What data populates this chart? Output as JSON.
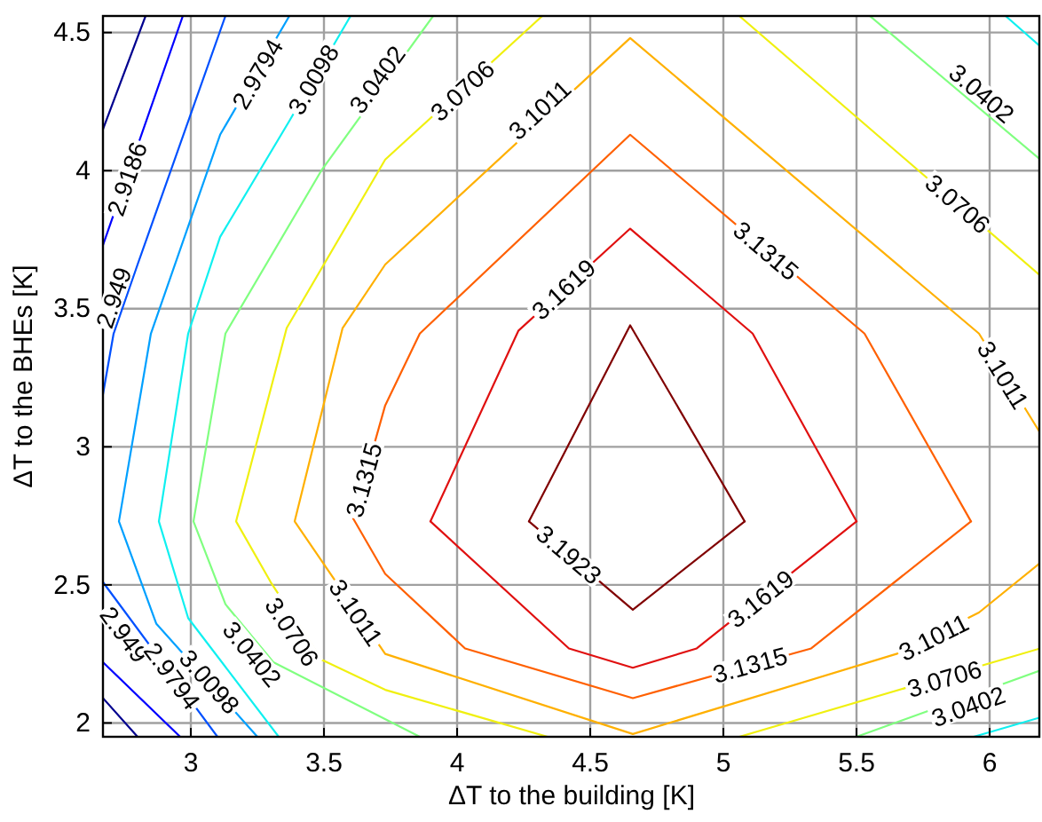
{
  "chart_data": {
    "type": "line",
    "xlabel": "ΔT to the building [K]",
    "ylabel": "ΔT to the BHEs [K]",
    "xlim": [
      2.67,
      6.19
    ],
    "ylim": [
      1.95,
      4.56
    ],
    "xticks": [
      3,
      3.5,
      4,
      4.5,
      5,
      5.5,
      6
    ],
    "yticks": [
      2,
      2.5,
      3,
      3.5,
      4,
      4.5
    ],
    "grid": true,
    "series": [
      {
        "color": "#00008f",
        "x": [
          2.67,
          2.83
        ],
        "values": [
          4.15,
          4.56
        ]
      },
      {
        "color": "#00008f",
        "x": [
          2.67,
          2.8
        ],
        "values": [
          2.09,
          1.95
        ]
      },
      {
        "color": "#0000ff",
        "x": [
          2.97,
          2.67
        ],
        "values": [
          4.56,
          3.73
        ]
      },
      {
        "color": "#0000ff",
        "x": [
          2.67,
          2.96
        ],
        "values": [
          2.22,
          1.95
        ]
      },
      {
        "color": "#0050ff",
        "x": [
          3.13,
          2.8,
          2.71,
          2.67
        ],
        "values": [
          4.56,
          3.66,
          3.41,
          3.19
        ]
      },
      {
        "color": "#0050ff",
        "x": [
          2.67,
          3.1
        ],
        "values": [
          2.51,
          1.95
        ]
      },
      {
        "color": "#00a0ff",
        "x": [
          3.37,
          3.11,
          2.85,
          2.73,
          2.87,
          3.25
        ],
        "values": [
          4.56,
          4.13,
          3.41,
          2.73,
          2.36,
          1.95
        ]
      },
      {
        "color": "#10f0f0",
        "x": [
          3.6,
          3.37,
          3.11,
          2.99,
          2.88,
          2.99,
          3.33
        ],
        "values": [
          4.56,
          4.18,
          3.76,
          3.41,
          2.73,
          2.38,
          1.95
        ]
      },
      {
        "color": "#10f0f0",
        "x": [
          6.06,
          6.19
        ],
        "values": [
          4.56,
          4.45
        ]
      },
      {
        "color": "#10f0f0",
        "x": [
          5.94,
          6.19
        ],
        "values": [
          1.95,
          2.02
        ]
      },
      {
        "color": "#80ff80",
        "x": [
          3.91,
          3.49,
          3.13,
          3.01,
          3.13,
          3.31,
          3.86
        ],
        "values": [
          4.56,
          4.0,
          3.41,
          2.73,
          2.43,
          2.22,
          1.95
        ]
      },
      {
        "color": "#80ff80",
        "x": [
          5.55,
          6.19
        ],
        "values": [
          4.56,
          4.04
        ]
      },
      {
        "color": "#80ff80",
        "x": [
          6.19,
          5.5
        ],
        "values": [
          2.19,
          1.95
        ]
      },
      {
        "color": "#f0f010",
        "x": [
          4.32,
          3.73,
          3.36,
          3.17,
          3.3,
          3.49,
          3.73,
          4.34
        ],
        "values": [
          4.56,
          4.04,
          3.43,
          2.73,
          2.51,
          2.23,
          2.12,
          1.95
        ]
      },
      {
        "color": "#f0f010",
        "x": [
          5.06,
          6.19
        ],
        "values": [
          4.56,
          3.62
        ]
      },
      {
        "color": "#f0f010",
        "x": [
          6.19,
          5.06
        ],
        "values": [
          2.27,
          1.95
        ]
      },
      {
        "color": "#ffb000",
        "x": [
          6.19,
          5.96,
          4.65,
          3.73,
          3.57,
          3.39,
          3.73,
          4.66,
          5.65,
          5.96,
          6.19
        ],
        "values": [
          3.05,
          3.41,
          4.48,
          3.66,
          3.43,
          2.73,
          2.25,
          1.96,
          2.25,
          2.4,
          2.58
        ]
      },
      {
        "color": "#ff6000",
        "x": [
          3.61,
          3.73,
          3.86,
          4.65,
          5.53,
          5.93
        ],
        "values": [
          2.74,
          3.15,
          3.41,
          4.13,
          3.41,
          2.73
        ]
      },
      {
        "color": "#ff6000",
        "x": [
          3.61,
          3.73,
          4.03,
          4.66,
          5.33,
          5.93
        ],
        "values": [
          2.74,
          2.54,
          2.27,
          2.09,
          2.27,
          2.73
        ]
      },
      {
        "color": "#e01010",
        "x": [
          3.9,
          4.23,
          4.65,
          5.11,
          5.5
        ],
        "values": [
          2.73,
          3.42,
          3.79,
          3.41,
          2.73
        ]
      },
      {
        "color": "#e01010",
        "x": [
          3.9,
          4.42,
          4.66,
          4.9,
          5.5
        ],
        "values": [
          2.73,
          2.27,
          2.2,
          2.27,
          2.73
        ]
      },
      {
        "color": "#800000",
        "x": [
          4.27,
          4.65,
          5.08
        ],
        "values": [
          2.73,
          3.44,
          2.73
        ]
      },
      {
        "color": "#800000",
        "x": [
          4.27,
          4.66,
          5.08
        ],
        "values": [
          2.73,
          2.41,
          2.73
        ]
      }
    ],
    "annotations": [
      {
        "text": "2.9186",
        "x": 2.76,
        "y": 3.97
      },
      {
        "text": "2.949",
        "x": 2.71,
        "y": 3.54
      },
      {
        "text": "2.949",
        "x": 2.75,
        "y": 2.32
      },
      {
        "text": "2.9794",
        "x": 3.25,
        "y": 4.35
      },
      {
        "text": "2.9794",
        "x": 2.93,
        "y": 2.17
      },
      {
        "text": "3.0098",
        "x": 3.46,
        "y": 4.33
      },
      {
        "text": "3.0098",
        "x": 3.07,
        "y": 2.15
      },
      {
        "text": "3.0402",
        "x": 3.7,
        "y": 4.33
      },
      {
        "text": "3.0402",
        "x": 3.23,
        "y": 2.25
      },
      {
        "text": "3.0402",
        "x": 5.97,
        "y": 4.28
      },
      {
        "text": "3.0402",
        "x": 5.92,
        "y": 2.06
      },
      {
        "text": "3.0706",
        "x": 4.02,
        "y": 4.29
      },
      {
        "text": "3.0706",
        "x": 3.38,
        "y": 2.33
      },
      {
        "text": "3.0706",
        "x": 5.88,
        "y": 3.88
      },
      {
        "text": "3.0706",
        "x": 5.83,
        "y": 2.16
      },
      {
        "text": "3.1011",
        "x": 4.31,
        "y": 4.22
      },
      {
        "text": "3.1011",
        "x": 3.62,
        "y": 2.4
      },
      {
        "text": "3.1011",
        "x": 6.05,
        "y": 3.26
      },
      {
        "text": "3.1011",
        "x": 5.79,
        "y": 2.31
      },
      {
        "text": "3.1315",
        "x": 3.65,
        "y": 2.88
      },
      {
        "text": "3.1315",
        "x": 5.16,
        "y": 3.71
      },
      {
        "text": "3.1315",
        "x": 5.1,
        "y": 2.21
      },
      {
        "text": "3.1619",
        "x": 4.4,
        "y": 3.57
      },
      {
        "text": "3.1619",
        "x": 5.14,
        "y": 2.45
      },
      {
        "text": "3.1923",
        "x": 4.42,
        "y": 2.61
      }
    ]
  }
}
